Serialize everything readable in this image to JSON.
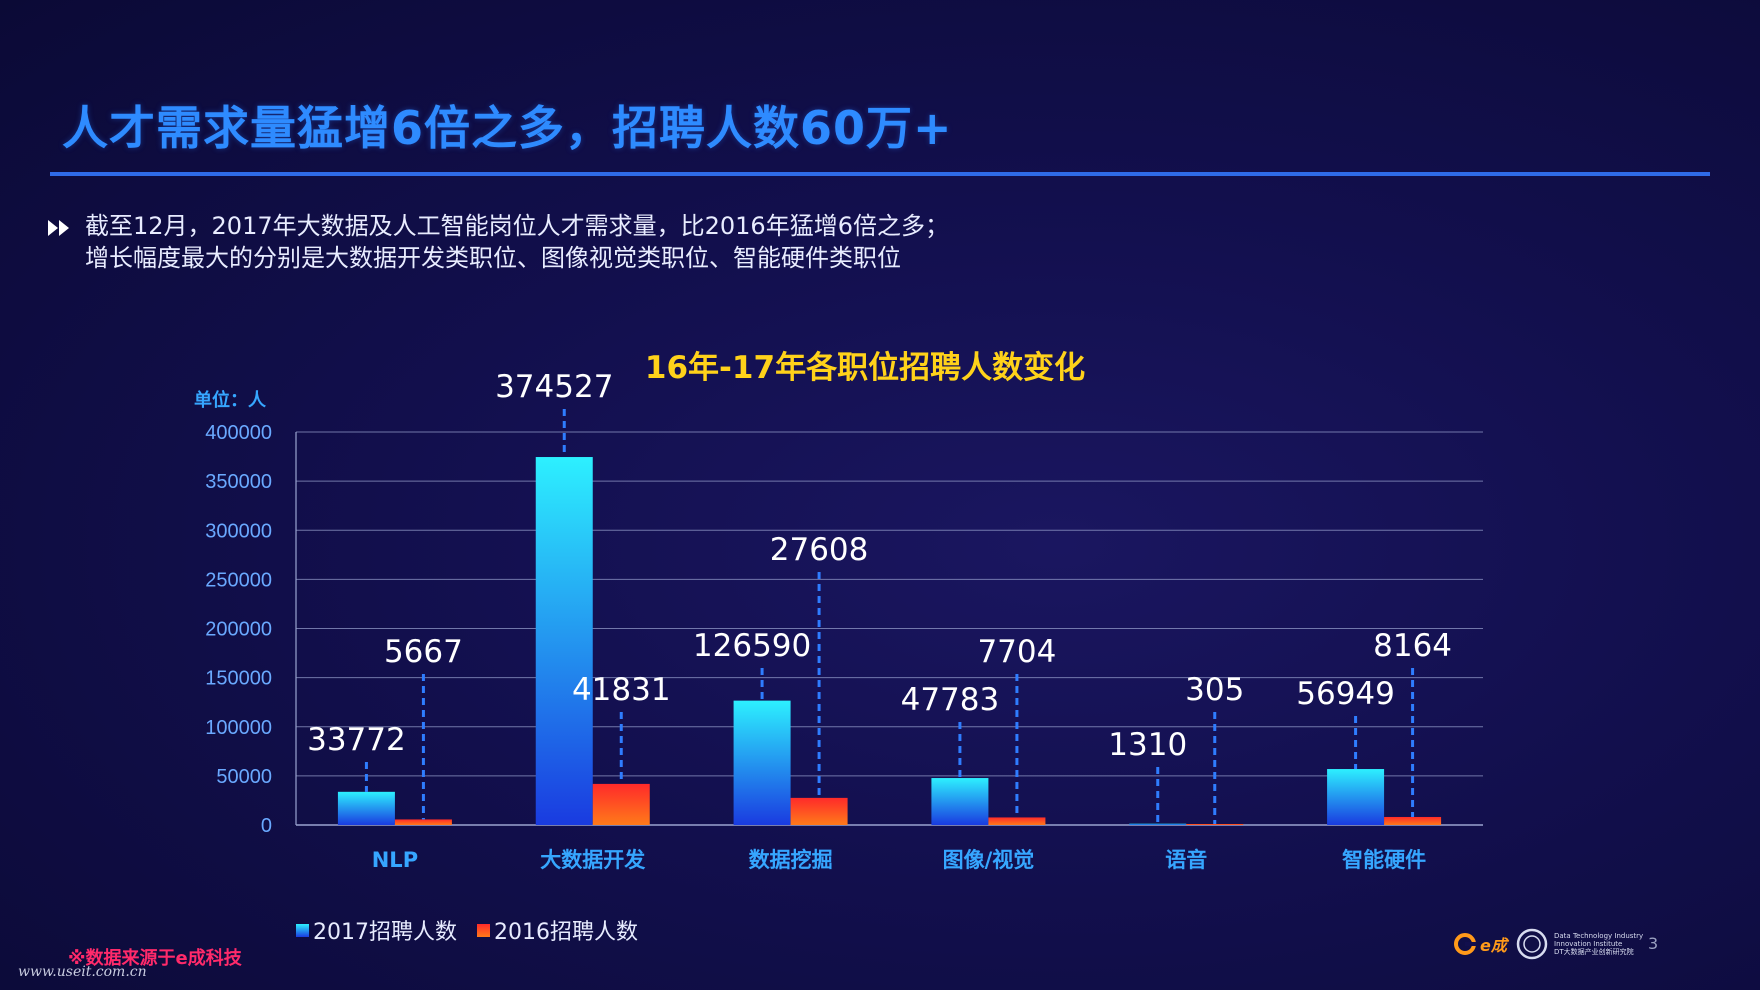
{
  "title": "人才需求量猛增6倍之多，招聘人数60万+",
  "description": {
    "line1": "截至12月，2017年大数据及人工智能岗位人才需求量，比2016年猛增6倍之多；",
    "line2": "增长幅度最大的分别是大数据开发类职位、图像视觉类职位、智能硬件类职位"
  },
  "unit_label": "单位：人",
  "footer": {
    "source": "※数据来源于e成科技",
    "watermark": "www.useit.com.cn",
    "brand_e": "e成",
    "brand_dti_line1": "Data Technology Industry",
    "brand_dti_line2": "Innovation Institute",
    "brand_dti_line3": "DT大数据产业创新研究院",
    "page_number": "3"
  },
  "colors": {
    "series_2017_top": "#2df0ff",
    "series_2017_bottom": "#1a3be0",
    "series_2016_top": "#ff2a2a",
    "series_2016_bottom": "#ff7a1a",
    "grid": "#9aa3d0",
    "axis_text": "#6aa9ff",
    "category_text": "#36a6ff",
    "label_text": "#ffffff",
    "leader": "#2f7dff"
  },
  "chart_data": {
    "type": "bar",
    "title": "16年-17年各职位招聘人数变化",
    "categories": [
      "NLP",
      "大数据开发",
      "数据挖掘",
      "图像/视觉",
      "语音",
      "智能硬件"
    ],
    "series": [
      {
        "name": "2017招聘人数",
        "values": [
          33772,
          374527,
          126590,
          47783,
          1310,
          56949
        ]
      },
      {
        "name": "2016招聘人数",
        "values": [
          5667,
          41831,
          27608,
          7704,
          305,
          8164
        ]
      }
    ],
    "yticks": [
      "0",
      "50000",
      "100000",
      "150000",
      "200000",
      "250000",
      "300000",
      "350000",
      "400000"
    ],
    "ylim": [
      0,
      400000
    ],
    "xlabel": "",
    "ylabel": "单位：人",
    "legend": "bottom-left",
    "grid": true
  }
}
